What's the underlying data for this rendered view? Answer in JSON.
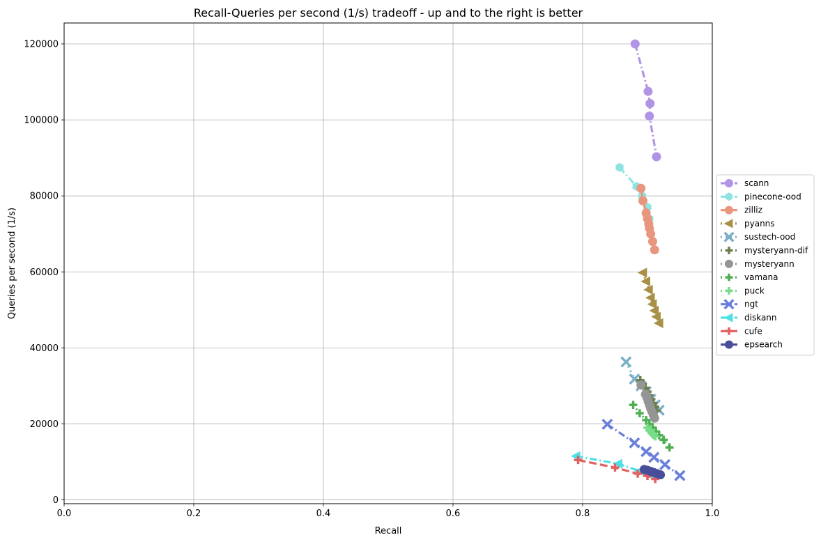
{
  "chart_data": {
    "type": "line",
    "title": "Recall-Queries per second (1/s) tradeoff - up and to the right is better",
    "xlabel": "Recall",
    "ylabel": "Queries per second (1/s)",
    "xlim": [
      0.0,
      1.0
    ],
    "ylim": [
      -1000,
      125500
    ],
    "xticks": [
      "0.0",
      "0.2",
      "0.4",
      "0.6",
      "0.8",
      "1.0"
    ],
    "yticks": [
      "0",
      "20000",
      "40000",
      "60000",
      "80000",
      "100000",
      "120000"
    ],
    "grid": true,
    "legend_position": "right",
    "series": [
      {
        "name": "scann",
        "color": "#b094e6",
        "marker": "circle",
        "dash": "dashdot",
        "points": [
          [
            0.881,
            120000
          ],
          [
            0.901,
            107500
          ],
          [
            0.904,
            104300
          ],
          [
            0.903,
            101000
          ],
          [
            0.914,
            90300
          ]
        ]
      },
      {
        "name": "pinecone-ood",
        "color": "#8fe3e3",
        "marker": "hexagon",
        "dash": "dashdot",
        "points": [
          [
            0.857,
            87500
          ],
          [
            0.883,
            82500
          ],
          [
            0.892,
            80000
          ],
          [
            0.9,
            77000
          ],
          [
            0.903,
            74000
          ]
        ]
      },
      {
        "name": "zilliz",
        "color": "#e8977e",
        "marker": "circle",
        "dash": "solid",
        "points": [
          [
            0.89,
            82000
          ],
          [
            0.893,
            78700
          ],
          [
            0.898,
            75500
          ],
          [
            0.9,
            74000
          ],
          [
            0.902,
            72600
          ],
          [
            0.903,
            71500
          ],
          [
            0.905,
            70000
          ],
          [
            0.908,
            68000
          ],
          [
            0.911,
            65800
          ]
        ]
      },
      {
        "name": "pyanns",
        "color": "#a89048",
        "marker": "triangle-left",
        "dash": "dotted",
        "points": [
          [
            0.893,
            59800
          ],
          [
            0.898,
            57500
          ],
          [
            0.902,
            55300
          ],
          [
            0.905,
            53200
          ],
          [
            0.908,
            51500
          ],
          [
            0.911,
            49800
          ],
          [
            0.914,
            48200
          ],
          [
            0.918,
            46500
          ]
        ]
      },
      {
        "name": "sustech-ood",
        "color": "#7aafc9",
        "marker": "x",
        "dash": "dotted",
        "points": [
          [
            0.867,
            36300
          ],
          [
            0.88,
            31800
          ],
          [
            0.89,
            30000
          ],
          [
            0.898,
            28500
          ],
          [
            0.905,
            26500
          ],
          [
            0.912,
            25000
          ],
          [
            0.918,
            23600
          ]
        ]
      },
      {
        "name": "mysteryann-dif",
        "color": "#6d7f4e",
        "marker": "plus",
        "dash": "dotted",
        "points": [
          [
            0.889,
            31500
          ],
          [
            0.893,
            30500
          ],
          [
            0.897,
            29500
          ],
          [
            0.9,
            28500
          ],
          [
            0.903,
            27500
          ],
          [
            0.906,
            26500
          ],
          [
            0.909,
            25500
          ],
          [
            0.912,
            24500
          ],
          [
            0.914,
            23500
          ]
        ]
      },
      {
        "name": "mysteryann",
        "color": "#959595",
        "marker": "circle",
        "dash": "dotted",
        "points": [
          [
            0.89,
            30200
          ],
          [
            0.897,
            27800
          ],
          [
            0.899,
            27000
          ],
          [
            0.901,
            26000
          ],
          [
            0.903,
            25000
          ],
          [
            0.905,
            24000
          ],
          [
            0.907,
            23200
          ],
          [
            0.909,
            22400
          ],
          [
            0.911,
            21500
          ]
        ]
      },
      {
        "name": "vamana",
        "color": "#4caf50",
        "marker": "plus",
        "dash": "dotted",
        "points": [
          [
            0.878,
            25000
          ],
          [
            0.888,
            22800
          ],
          [
            0.898,
            21000
          ],
          [
            0.903,
            20000
          ],
          [
            0.908,
            19000
          ],
          [
            0.913,
            18000
          ],
          [
            0.918,
            17000
          ],
          [
            0.925,
            15800
          ],
          [
            0.934,
            13800
          ]
        ]
      },
      {
        "name": "puck",
        "color": "#77dd88",
        "marker": "plus",
        "dash": "dotted",
        "points": [
          [
            0.9,
            19000
          ],
          [
            0.903,
            18300
          ],
          [
            0.906,
            17700
          ],
          [
            0.909,
            17100
          ],
          [
            0.912,
            16700
          ]
        ]
      },
      {
        "name": "ngt",
        "color": "#6a7fdb",
        "marker": "x",
        "dash": "dashdot",
        "points": [
          [
            0.838,
            19900
          ],
          [
            0.88,
            15000
          ],
          [
            0.898,
            12700
          ],
          [
            0.91,
            11200
          ],
          [
            0.927,
            9300
          ],
          [
            0.95,
            6400
          ]
        ]
      },
      {
        "name": "diskann",
        "color": "#4fdfe6",
        "marker": "triangle-left",
        "dash": "dashdot",
        "points": [
          [
            0.79,
            11500
          ],
          [
            0.855,
            9500
          ],
          [
            0.888,
            7600
          ],
          [
            0.9,
            7000
          ],
          [
            0.905,
            6800
          ]
        ]
      },
      {
        "name": "cufe",
        "color": "#e36060",
        "marker": "plus",
        "dash": "dashed",
        "points": [
          [
            0.793,
            10500
          ],
          [
            0.85,
            8500
          ],
          [
            0.885,
            6900
          ],
          [
            0.9,
            6300
          ],
          [
            0.912,
            5500
          ]
        ]
      },
      {
        "name": "epsearch",
        "color": "#4a4e9a",
        "marker": "circle",
        "dash": "solid",
        "points": [
          [
            0.895,
            8000
          ],
          [
            0.9,
            7800
          ],
          [
            0.905,
            7500
          ],
          [
            0.91,
            7200
          ],
          [
            0.915,
            6900
          ],
          [
            0.92,
            6600
          ]
        ]
      }
    ]
  }
}
